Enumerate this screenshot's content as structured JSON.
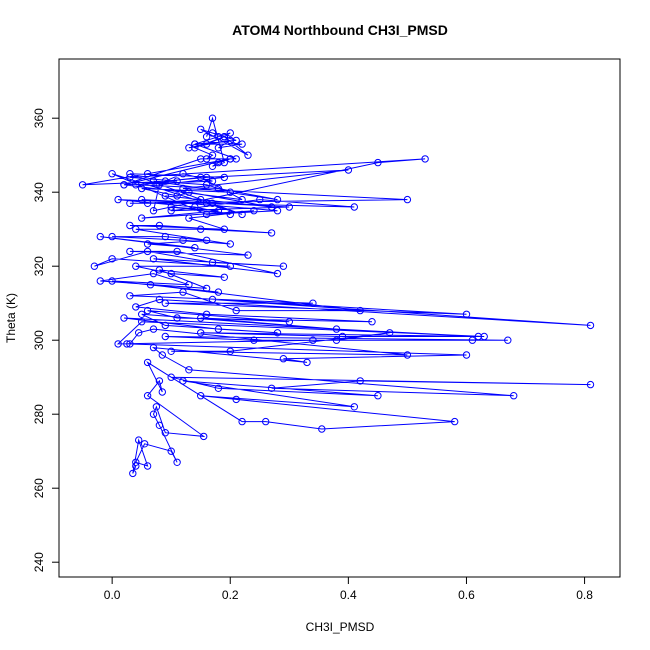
{
  "chart_data": {
    "type": "line",
    "title": "ATOM4 Northbound CH3I_PMSD",
    "xlabel": "CH3I_PMSD",
    "ylabel": "Theta (K)",
    "xlim": [
      -0.09,
      0.86
    ],
    "ylim": [
      236,
      376
    ],
    "xticks": [
      0.0,
      0.2,
      0.4,
      0.6,
      0.8
    ],
    "yticks": [
      240,
      260,
      280,
      300,
      320,
      340,
      360
    ],
    "xtick_labels": [
      "0.0",
      "0.2",
      "0.4",
      "0.6",
      "0.8"
    ],
    "ytick_labels": [
      "240",
      "260",
      "280",
      "300",
      "320",
      "340",
      "360"
    ],
    "grid": false,
    "legend": "none",
    "colors": {
      "series": "#0000ff",
      "axis": "#000000"
    },
    "series": [
      {
        "marker": "open-circle",
        "x": [
          0.04,
          0.035,
          0.045,
          0.06,
          0.04,
          0.055,
          0.1,
          0.11,
          0.08,
          0.07,
          0.075,
          0.09,
          0.155,
          0.06,
          0.08,
          0.085,
          0.06,
          0.22,
          0.26,
          0.355,
          0.58,
          0.21,
          0.15,
          0.41,
          0.12,
          0.45,
          0.18,
          0.1,
          0.81,
          0.42,
          0.27,
          0.68,
          0.13,
          0.085,
          0.07,
          0.33,
          0.29,
          0.6,
          0.025,
          0.03,
          0.045,
          0.07,
          0.5,
          0.1,
          0.2,
          0.47,
          0.38,
          0.61,
          0.24,
          0.09,
          0.67,
          0.34,
          0.01,
          0.05,
          0.63,
          0.15,
          0.39,
          0.62,
          0.02,
          0.18,
          0.28,
          0.09,
          0.05,
          0.38,
          0.15,
          0.3,
          0.06,
          0.11,
          0.44,
          0.16,
          0.04,
          0.08,
          0.81,
          0.17,
          0.6,
          0.09,
          0.34,
          0.03,
          0.12,
          0.21,
          0.42,
          0.065,
          0.18,
          0.0,
          0.13,
          0.07,
          -0.02,
          0.16,
          0.08,
          0.19,
          0.1,
          0.04,
          0.2,
          0.0,
          -0.03,
          0.06,
          0.17,
          0.29,
          0.07,
          0.28,
          0.11,
          0.03,
          0.23,
          -0.02,
          0.14,
          0.06,
          0.16,
          0.09,
          0.0,
          0.12,
          0.2,
          0.04,
          0.15,
          0.27,
          0.08,
          0.03,
          0.19,
          0.13,
          0.24,
          0.05,
          0.18,
          0.1,
          0.2,
          0.14,
          0.01,
          0.17,
          0.06,
          0.15,
          0.09,
          0.27,
          0.13,
          0.11,
          0.05,
          0.2,
          0.16,
          0.07,
          0.28,
          0.18,
          0.04,
          0.15,
          0.22,
          0.02,
          0.17,
          0.12,
          0.09,
          0.16,
          0.4,
          0.12,
          0.5,
          0.03,
          0.16,
          0.41,
          0.25,
          0.1,
          0.3,
          0.05,
          0.28,
          0.16,
          0.0,
          0.22,
          0.03,
          0.19,
          0.08,
          0.07,
          0.45,
          0.53,
          0.03,
          0.11,
          -0.05,
          0.06,
          0.2,
          0.02,
          0.15,
          0.21,
          0.14,
          0.22,
          0.18,
          0.2,
          0.13,
          0.16,
          0.19,
          0.2,
          0.18,
          0.14,
          0.21,
          0.17,
          0.15,
          0.23,
          0.19,
          0.14,
          0.17,
          0.16,
          0.2,
          0.18,
          0.17,
          0.19,
          0.17,
          0.16
        ],
        "y": [
          266,
          264,
          273,
          266,
          267,
          272,
          270,
          267,
          277,
          280,
          282,
          275,
          274,
          285,
          289,
          286,
          294,
          278,
          278,
          276,
          278,
          284,
          285,
          282,
          289,
          285,
          287,
          290,
          288,
          289,
          287,
          285,
          292,
          296,
          298,
          294,
          295,
          296,
          299,
          299,
          302,
          303,
          296,
          297,
          297,
          302,
          300,
          300,
          300,
          301,
          300,
          300,
          299,
          305,
          301,
          302,
          301,
          301,
          306,
          303,
          302,
          304,
          307,
          303,
          306,
          305,
          308,
          306,
          305,
          307,
          309,
          311,
          304,
          311,
          307,
          310,
          310,
          312,
          313,
          308,
          308,
          315,
          313,
          316,
          315,
          318,
          316,
          314,
          319,
          317,
          318,
          320,
          320,
          322,
          320,
          324,
          321,
          320,
          322,
          318,
          324,
          324,
          323,
          328,
          325,
          326,
          327,
          328,
          328,
          327,
          326,
          330,
          330,
          329,
          331,
          331,
          330,
          333,
          335,
          333,
          335,
          336,
          334,
          336,
          338,
          337,
          337,
          338,
          339,
          336,
          340,
          339,
          341,
          340,
          342,
          343,
          338,
          341,
          342,
          344,
          338,
          342,
          343,
          345,
          343,
          344,
          346,
          341,
          338,
          337,
          337,
          336,
          338,
          335,
          336,
          338,
          335,
          334,
          345,
          334,
          345,
          344,
          342,
          335,
          348,
          349,
          344,
          343,
          342,
          345,
          349,
          342,
          349,
          349,
          353,
          353,
          352,
          354,
          352,
          353,
          355,
          356,
          355,
          353,
          354,
          356,
          357,
          350,
          355,
          352,
          350,
          349,
          349,
          348,
          347,
          348,
          360,
          355
        ]
      }
    ]
  }
}
